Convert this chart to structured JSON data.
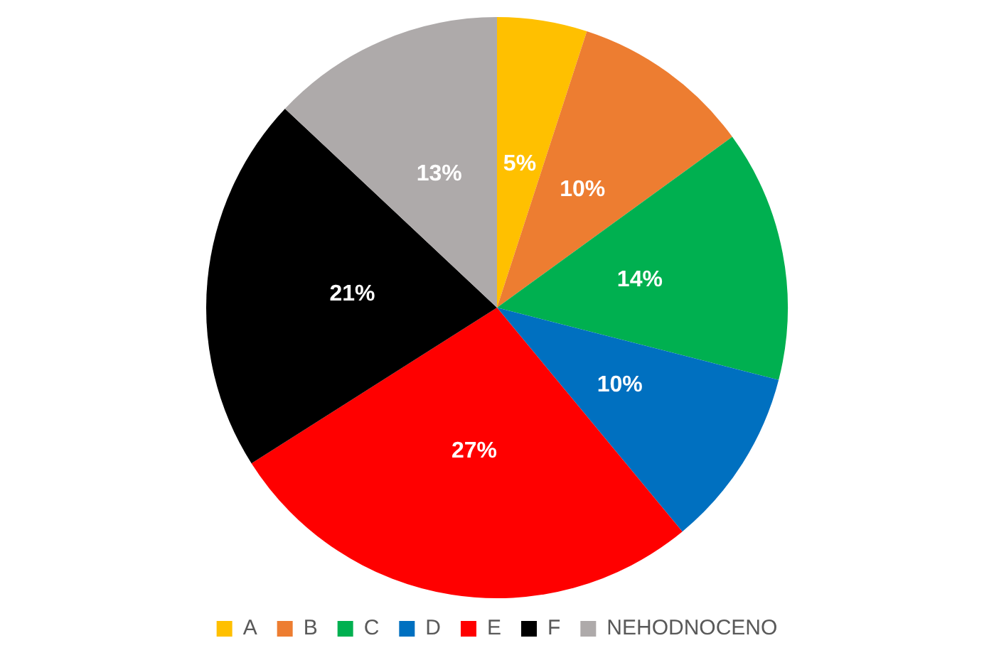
{
  "chart_data": {
    "type": "pie",
    "categories": [
      "A",
      "B",
      "C",
      "D",
      "E",
      "F",
      "NEHODNOCENO"
    ],
    "values": [
      5,
      10,
      14,
      10,
      27,
      21,
      13
    ],
    "colors": [
      "#ffc000",
      "#ed7d31",
      "#00b050",
      "#0070c0",
      "#ff0000",
      "#000000",
      "#aeaaaa"
    ],
    "value_labels": [
      "5%",
      "10%",
      "14%",
      "10%",
      "27%",
      "21%",
      "13%"
    ],
    "legend": "bottom"
  }
}
